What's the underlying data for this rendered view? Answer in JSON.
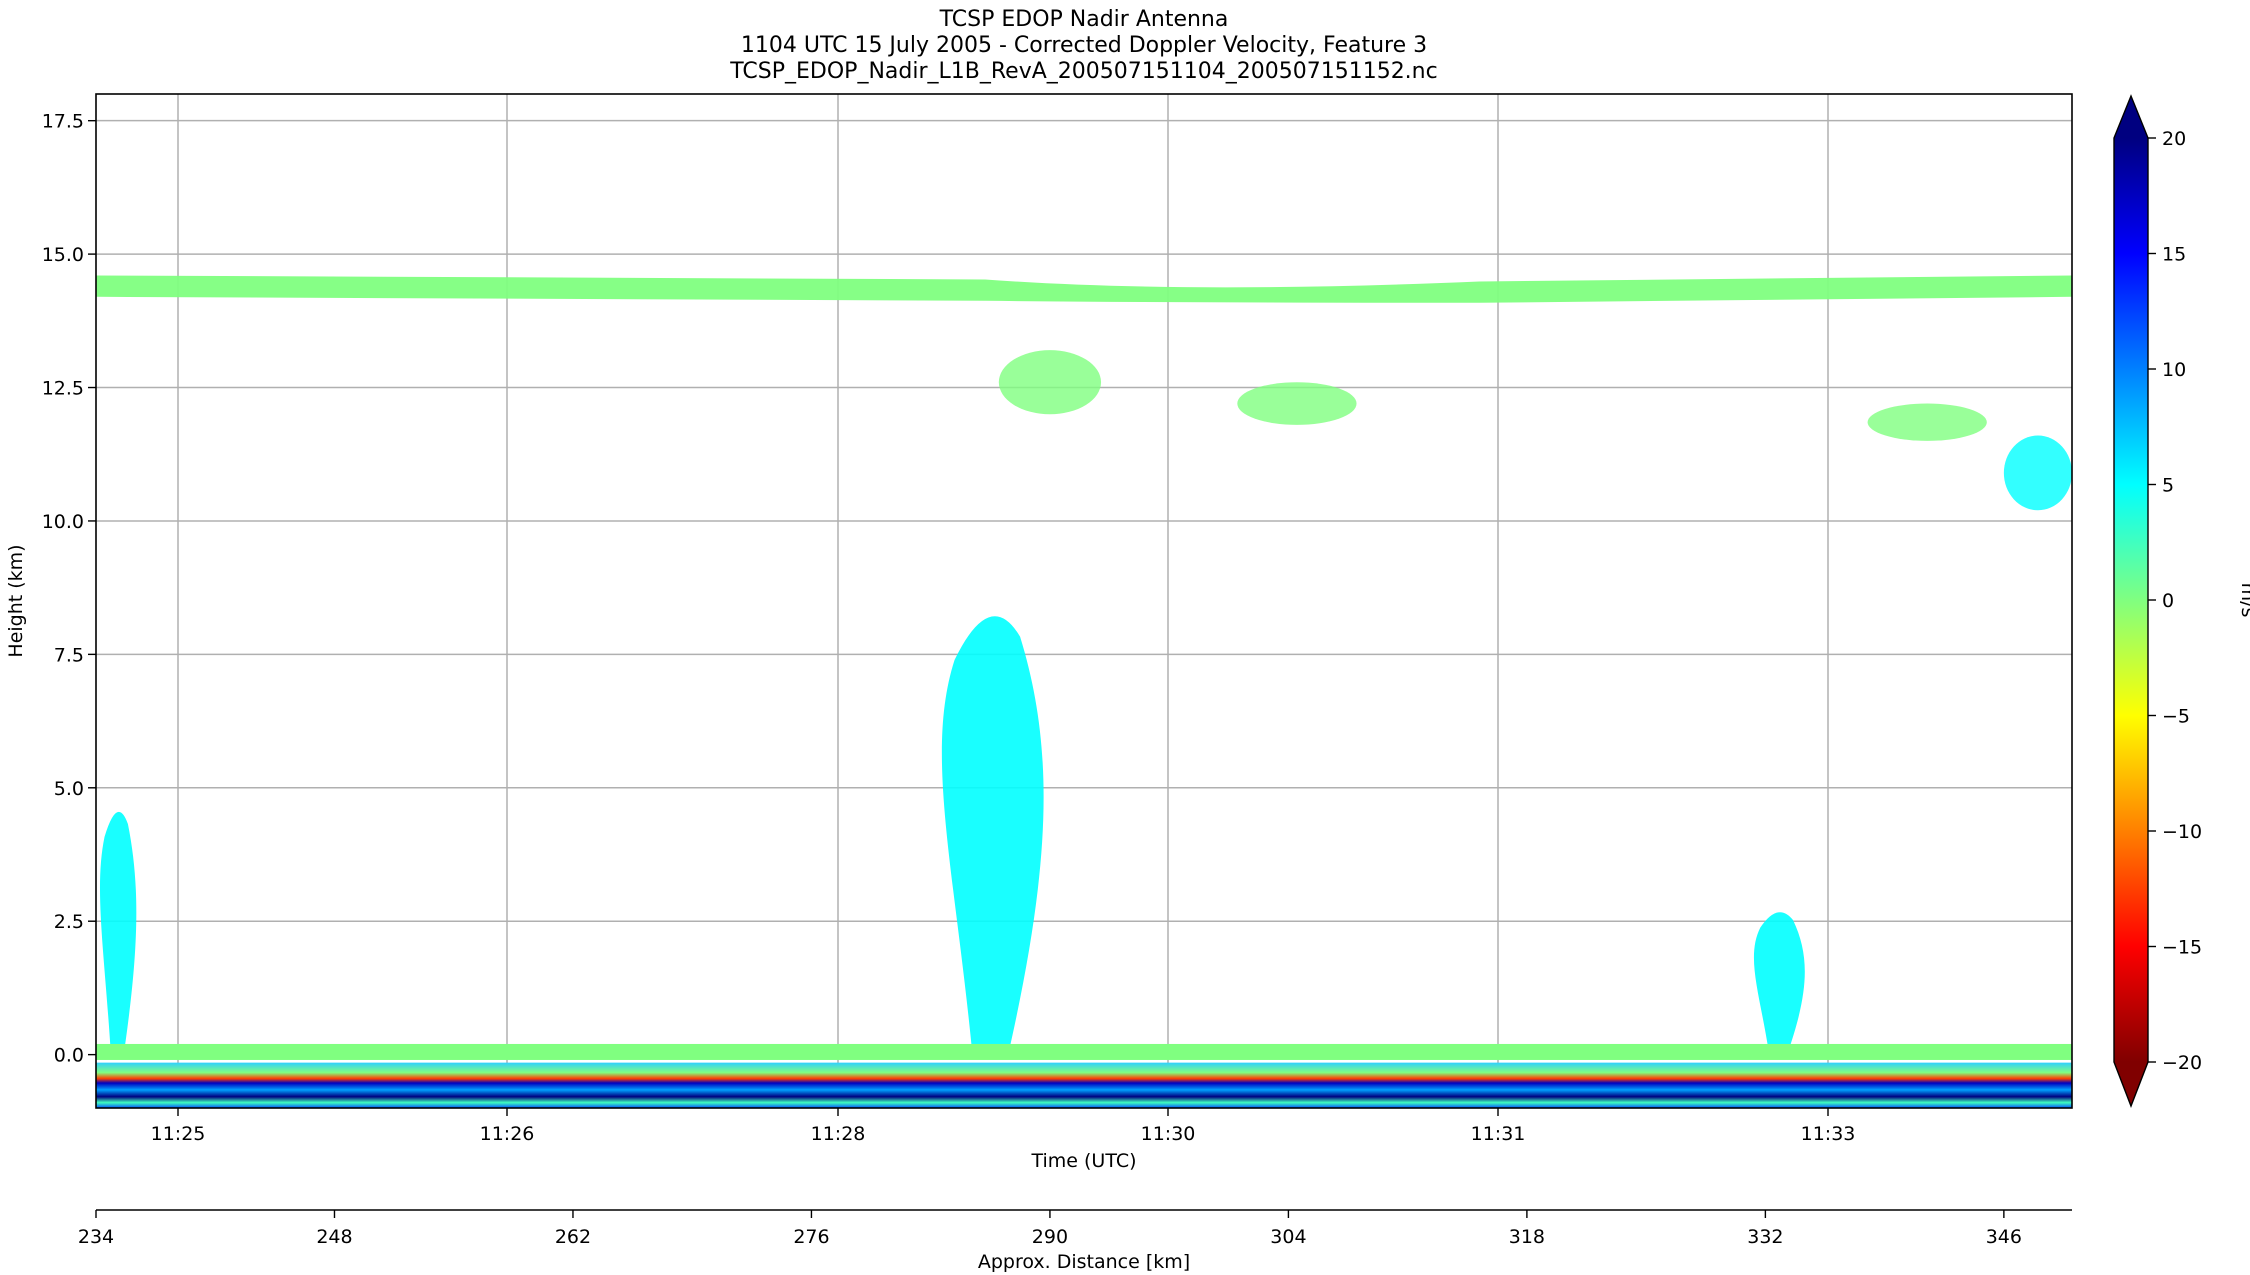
{
  "title_lines": [
    "TCSP EDOP Nadir Antenna",
    "1104 UTC 15 July 2005 - Corrected Doppler Velocity, Feature 3",
    "TCSP_EDOP_Nadir_L1B_RevA_200507151104_200507151152.nc"
  ],
  "chart_data": {
    "type": "heatmap",
    "xlabel": "Time (UTC)",
    "ylabel": "Height (km)",
    "x2label": "Approx. Distance [km]",
    "colorbar_label": "m/s",
    "x_tick_labels": [
      "11:25",
      "11:26",
      "11:28",
      "11:30",
      "11:31",
      "11:33"
    ],
    "x2_range": [
      234,
      350
    ],
    "x2_ticks": [
      234,
      248,
      262,
      276,
      290,
      304,
      318,
      332,
      346
    ],
    "ylim": [
      -1.0,
      18.0
    ],
    "y_ticks": [
      0.0,
      2.5,
      5.0,
      7.5,
      10.0,
      12.5,
      15.0,
      17.5
    ],
    "clim": [
      -20,
      20
    ],
    "colorbar_ticks": [
      -20,
      -15,
      -10,
      -5,
      0,
      5,
      10,
      15,
      20
    ],
    "colormap": [
      "#800000",
      "#ff0000",
      "#ff8000",
      "#ffff00",
      "#80ff80",
      "#00ffff",
      "#0080ff",
      "#0000ff",
      "#000080"
    ],
    "grid": true,
    "features": [
      {
        "kind": "layer",
        "x_km": [
          234,
          350
        ],
        "height_km": [
          14.2,
          14.6
        ],
        "velocity_ms": 1
      },
      {
        "kind": "patch",
        "x_km": [
          287,
          293
        ],
        "height_km": [
          12.0,
          13.2
        ],
        "velocity_ms": 1
      },
      {
        "kind": "patch",
        "x_km": [
          301,
          308
        ],
        "height_km": [
          11.8,
          12.6
        ],
        "velocity_ms": 1
      },
      {
        "kind": "patch",
        "x_km": [
          338,
          345
        ],
        "height_km": [
          11.5,
          12.2
        ],
        "velocity_ms": 1
      },
      {
        "kind": "patch",
        "x_km": [
          346,
          350
        ],
        "height_km": [
          10.2,
          11.6
        ],
        "velocity_ms": 3
      },
      {
        "kind": "convective_column",
        "x_km": [
          283,
          290
        ],
        "height_km": [
          0.0,
          8.7
        ],
        "velocity_ms": 5
      },
      {
        "kind": "convective_column",
        "x_km": [
          331,
          334.5
        ],
        "height_km": [
          0.0,
          2.8
        ],
        "velocity_ms": 4
      },
      {
        "kind": "convective_column",
        "x_km": [
          234,
          236.5
        ],
        "height_km": [
          0.0,
          4.8
        ],
        "velocity_ms": 7
      },
      {
        "kind": "surface_layer",
        "x_km": [
          234,
          350
        ],
        "height_km": [
          -0.1,
          0.2
        ],
        "velocity_ms": 2
      },
      {
        "kind": "sub_surface_mirror",
        "x_km": [
          234,
          350
        ],
        "height_km": [
          -1.0,
          -0.15
        ],
        "velocity_ms": 15
      }
    ]
  }
}
